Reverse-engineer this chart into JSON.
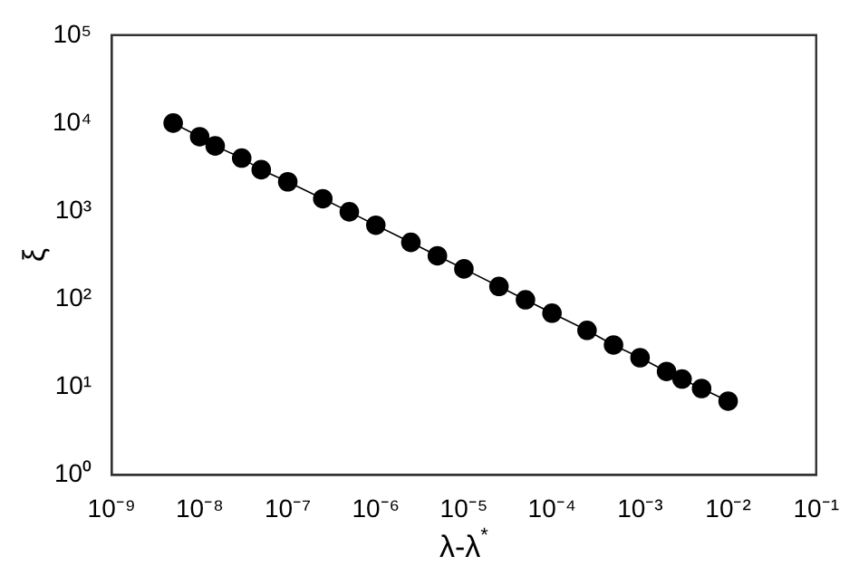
{
  "chart_data": {
    "type": "line",
    "xlabel": "λ-λ$^{*}$",
    "ylabel": "ξ",
    "log": "xy",
    "grid": false,
    "legend": false,
    "marker": "circle",
    "line_style": "solid",
    "xlim": [
      1e-09,
      0.1
    ],
    "ylim": [
      1,
      100000
    ],
    "xticks": [
      {
        "value": 1e-09,
        "label": "10⁻⁹"
      },
      {
        "value": 1e-08,
        "label": "10⁻⁸"
      },
      {
        "value": 1e-07,
        "label": "10⁻⁷"
      },
      {
        "value": 1e-06,
        "label": "10⁻⁶"
      },
      {
        "value": 1e-05,
        "label": "10⁻⁵"
      },
      {
        "value": 0.0001,
        "label": "10⁻⁴"
      },
      {
        "value": 0.001,
        "label": "10⁻³"
      },
      {
        "value": 0.01,
        "label": "10⁻²"
      },
      {
        "value": 0.1,
        "label": "10⁻¹"
      }
    ],
    "yticks": [
      {
        "value": 1,
        "label": "10⁰"
      },
      {
        "value": 10,
        "label": "10¹"
      },
      {
        "value": 100,
        "label": "10²"
      },
      {
        "value": 1000,
        "label": "10³"
      },
      {
        "value": 10000,
        "label": "10⁴"
      },
      {
        "value": 100000,
        "label": "10⁵"
      }
    ],
    "x": [
      5e-09,
      1e-08,
      1.5e-08,
      3e-08,
      5e-08,
      1e-07,
      2.5e-07,
      5e-07,
      1e-06,
      2.5e-06,
      5e-06,
      1e-05,
      2.5e-05,
      5e-05,
      0.0001,
      0.00025,
      0.0005,
      0.001,
      0.002,
      0.003,
      0.005,
      0.01
    ],
    "series": [
      {
        "color": "#000000",
        "values": [
          10000,
          7000,
          5500,
          4000,
          2950,
          2150,
          1380,
          980,
          690,
          440,
          310,
          220,
          139,
          98,
          69,
          44,
          30,
          21.5,
          15,
          12.3,
          9.6,
          6.9
        ]
      }
    ]
  }
}
